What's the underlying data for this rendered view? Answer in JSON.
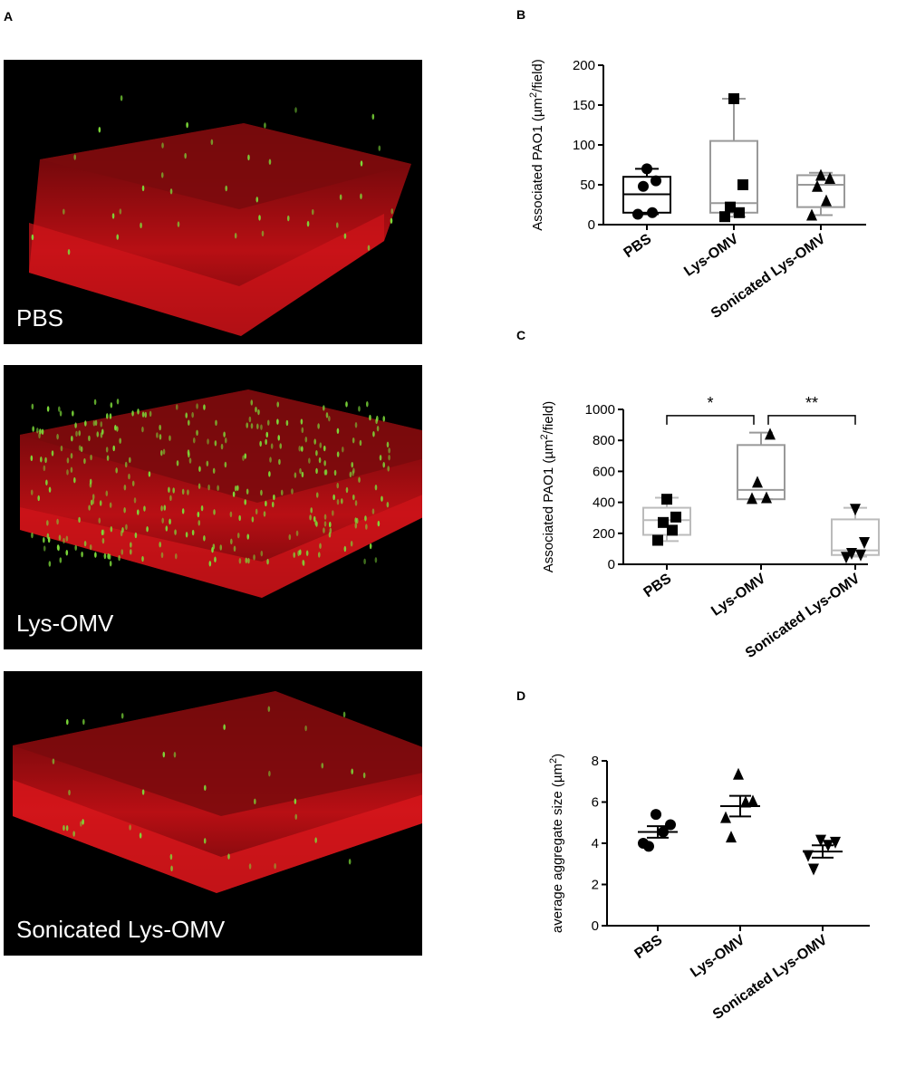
{
  "figure": {
    "panels": {
      "A": {
        "letter": "A",
        "images": [
          "PBS",
          "Lys-OMV",
          "Sonicated Lys-OMV"
        ]
      },
      "B": {
        "letter": "B"
      },
      "C": {
        "letter": "C"
      },
      "D": {
        "letter": "D"
      }
    }
  },
  "colors": {
    "tissue_red": "#e0141a",
    "bacteria_green": "#7ddc3a",
    "pbs_dark": "#000000",
    "gray_mid": "#999999",
    "gray_light": "#bbbbbb"
  },
  "chart_data": [
    {
      "id": "B",
      "type": "box",
      "categories": [
        "PBS",
        "Lys-OMV",
        "Sonicated Lys-OMV"
      ],
      "ylabel_main": "Associated PAO1 (µm",
      "ylabel_sup": "2",
      "ylabel_end": "/field)",
      "ylim": [
        0,
        200
      ],
      "yticks": [
        0,
        50,
        100,
        150,
        200
      ],
      "boxes": [
        {
          "name": "PBS",
          "min": 13,
          "q1": 15,
          "median": 38,
          "q3": 60,
          "max": 70,
          "color": "#000000",
          "marker": "circle",
          "points": [
            13,
            15,
            48,
            55,
            70
          ]
        },
        {
          "name": "Lys-OMV",
          "min": 10,
          "q1": 15,
          "median": 27,
          "q3": 105,
          "max": 158,
          "color": "#999999",
          "marker": "square",
          "points": [
            10,
            15,
            22,
            50,
            158
          ]
        },
        {
          "name": "Sonicated Lys-OMV",
          "min": 12,
          "q1": 22,
          "median": 50,
          "q3": 62,
          "max": 65,
          "color": "#999999",
          "marker": "triangle-up",
          "points": [
            12,
            30,
            48,
            58,
            62
          ]
        }
      ]
    },
    {
      "id": "C",
      "type": "box",
      "categories": [
        "PBS",
        "Lys-OMV",
        "Sonicated Lys-OMV"
      ],
      "ylabel_main": "Associated PAO1 (µm",
      "ylabel_sup": "2",
      "ylabel_end": "/field)",
      "ylim": [
        0,
        1000
      ],
      "yticks": [
        0,
        200,
        400,
        600,
        800,
        1000
      ],
      "boxes": [
        {
          "name": "PBS",
          "min": 150,
          "q1": 190,
          "median": 285,
          "q3": 365,
          "max": 430,
          "color": "#bbbbbb",
          "marker": "square",
          "points": [
            155,
            220,
            270,
            305,
            420
          ]
        },
        {
          "name": "Lys-OMV",
          "min": 420,
          "q1": 420,
          "median": 480,
          "q3": 770,
          "max": 850,
          "color": "#999999",
          "marker": "triangle-up",
          "points": [
            425,
            430,
            530,
            840
          ]
        },
        {
          "name": "Sonicated Lys-OMV",
          "min": 50,
          "q1": 60,
          "median": 90,
          "q3": 290,
          "max": 365,
          "color": "#bbbbbb",
          "marker": "triangle-down",
          "points": [
            45,
            60,
            70,
            140,
            355
          ]
        }
      ],
      "annotations": [
        {
          "from": 0,
          "to": 1,
          "label": "*",
          "y": 960
        },
        {
          "from": 1,
          "to": 2,
          "label": "**",
          "y": 960
        }
      ]
    },
    {
      "id": "D",
      "type": "scatter",
      "categories": [
        "PBS",
        "Lys-OMV",
        "Sonicated Lys-OMV"
      ],
      "ylabel_main": "average aggregate size  (µm",
      "ylabel_sup": "2",
      "ylabel_end": ")",
      "ylim": [
        0,
        8
      ],
      "yticks": [
        0,
        2,
        4,
        6,
        8
      ],
      "groups": [
        {
          "name": "PBS",
          "marker": "circle",
          "mean": 4.55,
          "sem": 0.28,
          "points": [
            3.85,
            4.0,
            4.55,
            4.9,
            5.4
          ]
        },
        {
          "name": "Lys-OMV",
          "marker": "triangle-up",
          "mean": 5.8,
          "sem": 0.5,
          "points": [
            4.3,
            5.25,
            6.0,
            6.05,
            7.35
          ]
        },
        {
          "name": "Sonicated Lys-OMV",
          "marker": "triangle-down",
          "mean": 3.6,
          "sem": 0.3,
          "points": [
            2.75,
            3.4,
            3.9,
            4.05,
            4.15
          ]
        }
      ]
    }
  ]
}
